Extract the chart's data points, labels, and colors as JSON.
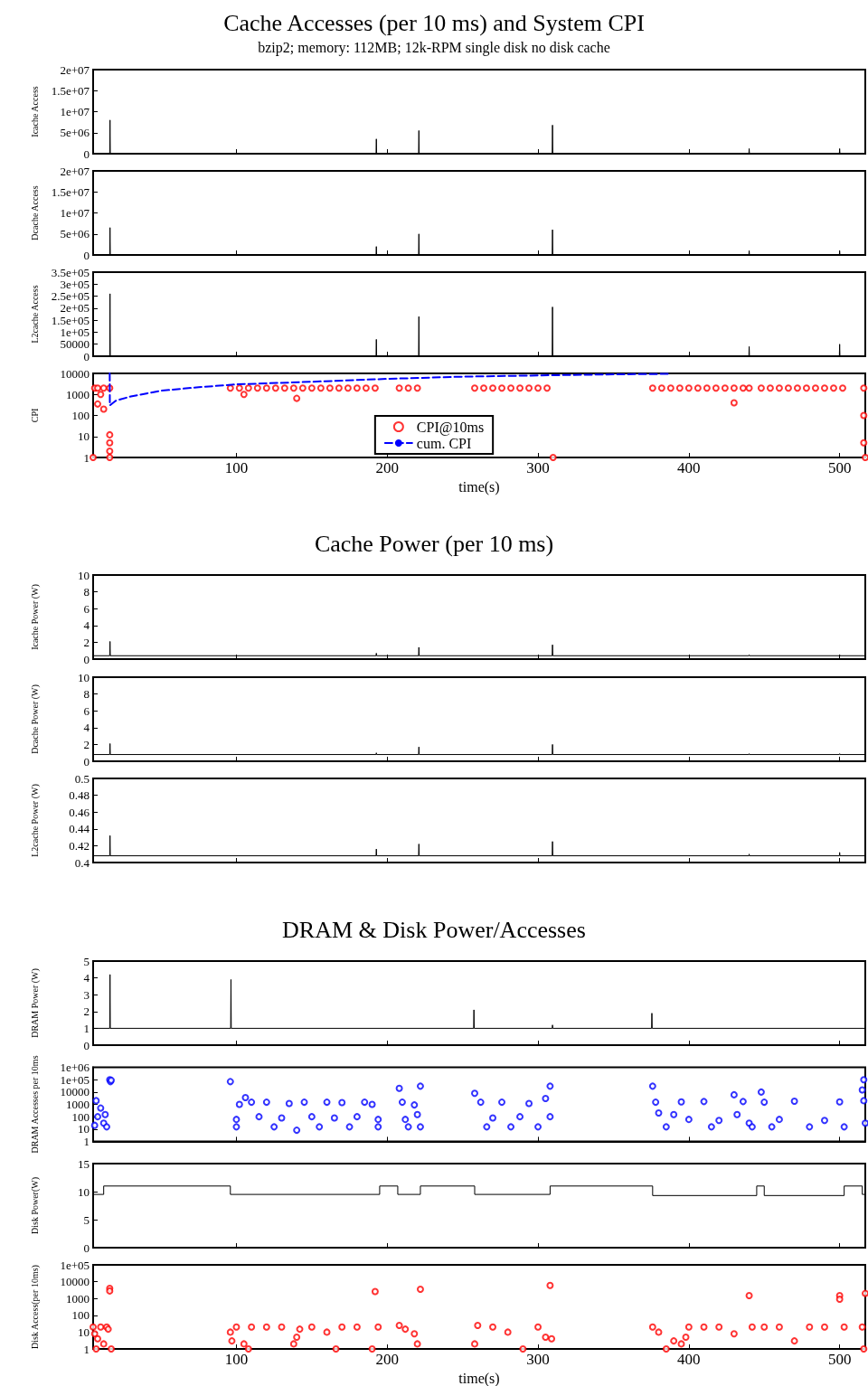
{
  "chart_data": [
    {
      "type": "line",
      "title": "Cache Accesses (per 10 ms) and System CPI",
      "subtitle": "bzip2; memory: 112MB; 12k-RPM single disk no disk cache",
      "ylabel": "Icache Access",
      "xlim": [
        5,
        517
      ],
      "xticks": [
        100,
        200,
        300,
        400,
        500
      ],
      "ylim": [
        0,
        20000000
      ],
      "yticks": [
        0,
        {
          "value": 5000000,
          "label": "5e+06"
        },
        {
          "value": 10000000,
          "label": "1e+07"
        },
        {
          "value": 15000000,
          "label": "1.5e+07"
        },
        {
          "value": 20000000,
          "label": "2e+07"
        }
      ],
      "tick_labels": "y",
      "grid": false,
      "series": [
        {
          "color": "#000000",
          "x": [
            5,
            16,
            16.2,
            16.4,
            192.6,
            192.8,
            193,
            220.8,
            221,
            221.2,
            309.4,
            309.6,
            309.8,
            439.8,
            440,
            440.2,
            499.8,
            500,
            500.2,
            517
          ],
          "values": [
            0,
            0,
            8000000,
            0,
            0,
            3500000,
            0,
            0,
            5500000,
            0,
            0,
            6800000,
            0,
            0,
            1200000,
            0,
            0,
            1200000,
            0,
            0
          ]
        }
      ]
    },
    {
      "type": "line",
      "ylabel": "Dcache Access",
      "xlim": [
        5,
        517
      ],
      "xticks": [
        100,
        200,
        300,
        400,
        500
      ],
      "ylim": [
        0,
        20000000
      ],
      "yticks": [
        0,
        {
          "value": 5000000,
          "label": "5e+06"
        },
        {
          "value": 10000000,
          "label": "1e+07"
        },
        {
          "value": 15000000,
          "label": "1.5e+07"
        },
        {
          "value": 20000000,
          "label": "2e+07"
        }
      ],
      "tick_labels": "y",
      "grid": false,
      "series": [
        {
          "color": "#000000",
          "x": [
            5,
            16,
            16.2,
            16.4,
            192.6,
            192.8,
            193,
            220.8,
            221,
            221.2,
            309.4,
            309.6,
            309.8,
            439.8,
            440,
            440.2,
            499.8,
            500,
            500.2,
            517
          ],
          "values": [
            0,
            0,
            6500000,
            0,
            0,
            2000000,
            0,
            0,
            5000000,
            0,
            0,
            6000000,
            0,
            0,
            1000000,
            0,
            0,
            1000000,
            0,
            0
          ]
        }
      ]
    },
    {
      "type": "line",
      "ylabel": "L2cache Access",
      "xlim": [
        5,
        517
      ],
      "xticks": [
        100,
        200,
        300,
        400,
        500
      ],
      "ylim": [
        0,
        350000
      ],
      "yticks": [
        0,
        50000,
        {
          "value": 100000,
          "label": "1e+05"
        },
        {
          "value": 150000,
          "label": "1.5e+05"
        },
        {
          "value": 200000,
          "label": "2e+05"
        },
        {
          "value": 250000,
          "label": "2.5e+05"
        },
        {
          "value": 300000,
          "label": "3e+05"
        },
        {
          "value": 350000,
          "label": "3.5e+05"
        }
      ],
      "tick_labels": "y",
      "grid": false,
      "series": [
        {
          "color": "#000000",
          "x": [
            5,
            16,
            16.2,
            16.4,
            192.6,
            192.8,
            193,
            220.8,
            221,
            221.2,
            309.4,
            309.6,
            309.8,
            439.8,
            440,
            440.2,
            499.8,
            500,
            500.2,
            517
          ],
          "values": [
            0,
            0,
            260000,
            0,
            0,
            70000,
            0,
            0,
            165000,
            0,
            0,
            205000,
            0,
            0,
            40000,
            0,
            0,
            50000,
            0,
            0
          ]
        }
      ]
    },
    {
      "type": "scatter",
      "xlabel": "time(s)",
      "ylabel": "CPI",
      "xlim": [
        5,
        517
      ],
      "xticks": [
        100,
        200,
        300,
        400,
        500
      ],
      "ylim": [
        1,
        10000
      ],
      "yticks": [
        1,
        10,
        100,
        1000,
        10000
      ],
      "log": "y",
      "grid": false,
      "legend": "bottom",
      "series": [
        {
          "name": "CPI@10ms",
          "marker": "circle",
          "color": "#ff0000",
          "x": [
            5,
            6,
            8,
            8,
            10,
            12,
            12,
            16,
            16,
            16,
            16,
            16,
            96,
            102,
            105,
            108,
            114,
            120,
            126,
            132,
            138,
            140,
            144,
            150,
            156,
            162,
            168,
            174,
            180,
            186,
            192,
            208,
            214,
            220,
            258,
            264,
            270,
            276,
            282,
            288,
            294,
            300,
            306,
            310,
            376,
            382,
            388,
            394,
            400,
            406,
            412,
            418,
            424,
            430,
            430,
            436,
            440,
            448,
            454,
            460,
            466,
            472,
            478,
            484,
            490,
            496,
            502,
            516,
            516,
            516,
            517
          ],
          "values": [
            1,
            2000,
            2000,
            350,
            1000,
            2000,
            200,
            2000,
            12,
            5,
            2,
            1,
            2000,
            2000,
            1000,
            2000,
            2000,
            2000,
            2000,
            2000,
            2000,
            650,
            2000,
            2000,
            2000,
            2000,
            2000,
            2000,
            2000,
            2000,
            2000,
            2000,
            2000,
            2000,
            2000,
            2000,
            2000,
            2000,
            2000,
            2000,
            2000,
            2000,
            2000,
            1,
            2000,
            2000,
            2000,
            2000,
            2000,
            2000,
            2000,
            2000,
            2000,
            2000,
            400,
            2000,
            2000,
            2000,
            2000,
            2000,
            2000,
            2000,
            2000,
            2000,
            2000,
            2000,
            2000,
            2000,
            100,
            5,
            1
          ]
        },
        {
          "name": "cum. CPI",
          "type": "line",
          "marker": "none",
          "line_style": "dashed",
          "color": "#0000ff",
          "x": [
            16,
            16.1,
            20,
            30,
            50,
            75,
            100,
            150,
            200,
            250,
            300,
            350,
            388
          ],
          "values": [
            10000,
            300,
            500,
            800,
            1500,
            2200,
            3000,
            4000,
            5500,
            7000,
            8000,
            9000,
            9500
          ]
        }
      ]
    },
    {
      "type": "line",
      "title": "Cache Power (per 10 ms)",
      "ylabel": "Icache Power (W)",
      "xlim": [
        5,
        517
      ],
      "xticks": [
        100,
        200,
        300,
        400,
        500
      ],
      "ylim": [
        0,
        10
      ],
      "yticks": [
        0,
        2,
        4,
        6,
        8,
        10
      ],
      "tick_labels": "y",
      "grid": false,
      "series": [
        {
          "color": "#000000",
          "x": [
            5,
            16,
            16.2,
            16.4,
            192.6,
            192.8,
            193,
            220.8,
            221,
            221.2,
            309.4,
            309.6,
            309.8,
            439.8,
            440,
            440.2,
            499.8,
            500,
            500.2,
            517
          ],
          "values": [
            0.4,
            0.4,
            2.1,
            0.4,
            0.4,
            0.7,
            0.4,
            0.4,
            1.4,
            0.4,
            0.4,
            1.7,
            0.4,
            0.4,
            0.5,
            0.4,
            0.4,
            0.5,
            0.4,
            0.4
          ]
        }
      ]
    },
    {
      "type": "line",
      "ylabel": "Dcache Power (W)",
      "xlim": [
        5,
        517
      ],
      "xticks": [
        100,
        200,
        300,
        400,
        500
      ],
      "ylim": [
        0,
        10
      ],
      "yticks": [
        0,
        2,
        4,
        6,
        8,
        10
      ],
      "tick_labels": "y",
      "grid": false,
      "series": [
        {
          "color": "#000000",
          "x": [
            5,
            16,
            16.2,
            16.4,
            192.6,
            192.8,
            193,
            220.8,
            221,
            221.2,
            309.4,
            309.6,
            309.8,
            439.8,
            440,
            440.2,
            499.8,
            500,
            500.2,
            517
          ],
          "values": [
            0.8,
            0.8,
            2.1,
            0.8,
            0.8,
            1,
            0.8,
            0.8,
            1.7,
            0.8,
            0.8,
            2,
            0.8,
            0.8,
            0.9,
            0.8,
            0.8,
            0.9,
            0.8,
            0.8
          ]
        }
      ]
    },
    {
      "type": "line",
      "ylabel": "L2cache Power (W)",
      "xlim": [
        5,
        517
      ],
      "xticks": [
        100,
        200,
        300,
        400,
        500
      ],
      "ylim": [
        0.4,
        0.5
      ],
      "yticks": [
        0.4,
        0.42,
        0.44,
        0.46,
        0.48,
        0.5
      ],
      "tick_labels": "y",
      "grid": false,
      "series": [
        {
          "color": "#000000",
          "x": [
            5,
            16,
            16.2,
            16.4,
            192.6,
            192.8,
            193,
            220.8,
            221,
            221.2,
            309.4,
            309.6,
            309.8,
            439.8,
            440,
            440.2,
            499.8,
            500,
            500.2,
            517
          ],
          "values": [
            0.408,
            0.408,
            0.432,
            0.408,
            0.408,
            0.416,
            0.408,
            0.408,
            0.422,
            0.408,
            0.408,
            0.425,
            0.408,
            0.408,
            0.41,
            0.408,
            0.408,
            0.412,
            0.408,
            0.408
          ]
        }
      ]
    },
    {
      "type": "line",
      "title": "DRAM & Disk Power/Accesses",
      "ylabel": "DRAM Power (W)",
      "xlim": [
        5,
        517
      ],
      "xticks": [
        100,
        200,
        300,
        400,
        500
      ],
      "ylim": [
        0,
        5
      ],
      "yticks": [
        0,
        1,
        2,
        3,
        4,
        5
      ],
      "tick_labels": "y",
      "grid": false,
      "series": [
        {
          "color": "#000000",
          "x": [
            5,
            16,
            16.2,
            16.4,
            96.2,
            96.4,
            96.6,
            257.3,
            257.5,
            257.7,
            309.4,
            309.6,
            309.8,
            375.3,
            375.5,
            375.7,
            517
          ],
          "values": [
            1,
            1,
            4.2,
            1,
            1,
            3.9,
            1,
            1,
            2.1,
            1,
            1,
            1.2,
            1,
            1,
            1.9,
            1,
            1
          ]
        }
      ]
    },
    {
      "type": "scatter",
      "ylabel": "DRAM Accesses per 10ms",
      "xlim": [
        5,
        517
      ],
      "xticks": [
        100,
        200,
        300,
        400,
        500
      ],
      "ylim": [
        1,
        1000000
      ],
      "yticks": [
        1,
        10,
        100,
        1000,
        10000,
        {
          "value": 100000,
          "label": "1e+05"
        },
        {
          "value": 1000000,
          "label": "1e+06"
        }
      ],
      "log": "y",
      "tick_labels": "y",
      "grid": false,
      "marker": "circle",
      "series": [
        {
          "color": "#0000ff",
          "x": [
            6,
            7,
            8,
            10,
            12,
            13,
            14,
            16,
            16.5,
            17,
            96,
            100,
            100,
            102,
            106,
            110,
            115,
            120,
            125,
            130,
            135,
            140,
            145,
            150,
            155,
            160,
            165,
            170,
            175,
            180,
            185,
            190,
            194,
            194,
            208,
            210,
            212,
            214,
            218,
            220,
            222,
            222,
            258,
            262,
            266,
            270,
            276,
            282,
            288,
            294,
            300,
            305,
            308,
            308,
            376,
            378,
            380,
            385,
            390,
            395,
            400,
            410,
            415,
            420,
            430,
            432,
            436,
            440,
            442,
            448,
            450,
            455,
            460,
            470,
            480,
            490,
            500,
            503,
            515,
            516,
            517,
            516
          ],
          "values": [
            20,
            2000,
            100,
            500,
            30,
            150,
            15,
            100000,
            70000,
            90000,
            70000,
            15,
            60,
            1000,
            3500,
            1500,
            100,
            1500,
            15,
            80,
            1200,
            8,
            1500,
            100,
            15,
            1500,
            80,
            1400,
            15,
            100,
            1500,
            1000,
            15,
            60,
            20000,
            1500,
            60,
            15,
            900,
            150,
            30000,
            15,
            8000,
            1500,
            15,
            80,
            1500,
            15,
            100,
            1200,
            15,
            3000,
            30000,
            100,
            30000,
            1500,
            200,
            15,
            150,
            1600,
            60,
            1700,
            15,
            50,
            6000,
            150,
            1700,
            30,
            15,
            10000,
            1500,
            15,
            60,
            1800,
            15,
            50,
            1600,
            15,
            15000,
            100000,
            30,
            2000
          ]
        }
      ]
    },
    {
      "type": "line",
      "ylabel": "Disk Power(W)",
      "xlim": [
        5,
        517
      ],
      "xticks": [
        100,
        200,
        300,
        400,
        500
      ],
      "ylim": [
        0,
        15
      ],
      "yticks": [
        0,
        5,
        10,
        15
      ],
      "tick_labels": "y",
      "grid": false,
      "series": [
        {
          "color": "#000000",
          "x": [
            5,
            12,
            12,
            96,
            96,
            195,
            195,
            207,
            207,
            222,
            222,
            258,
            258,
            308,
            308,
            376,
            376,
            445,
            445,
            450,
            450,
            503,
            503,
            515,
            515,
            517
          ],
          "values": [
            9.5,
            9.5,
            11,
            11,
            9.5,
            9.5,
            11,
            11,
            9.5,
            9.5,
            11,
            11,
            9.5,
            9.5,
            11,
            11,
            9.3,
            9.3,
            11,
            11,
            9.3,
            9.3,
            11,
            11,
            9.5,
            9.5
          ]
        }
      ]
    },
    {
      "type": "scatter",
      "xlabel": "time(s)",
      "ylabel": "Disk Access(per 10ms)",
      "xlim": [
        5,
        517
      ],
      "xticks": [
        100,
        200,
        300,
        400,
        500
      ],
      "ylim": [
        1,
        100000
      ],
      "yticks": [
        1,
        10,
        100,
        1000,
        10000,
        {
          "value": 100000,
          "label": "1e+05"
        }
      ],
      "log": "y",
      "grid": false,
      "marker": "circle",
      "series": [
        {
          "color": "#ff0000",
          "x": [
            5,
            6,
            7,
            8,
            10,
            12,
            14,
            16,
            16,
            17,
            15,
            96,
            97,
            100,
            105,
            108,
            110,
            120,
            130,
            138,
            140,
            142,
            150,
            160,
            166,
            170,
            180,
            190,
            192,
            194,
            208,
            212,
            218,
            220,
            222,
            258,
            260,
            270,
            280,
            290,
            300,
            305,
            308,
            309,
            376,
            380,
            385,
            390,
            395,
            398,
            400,
            410,
            420,
            430,
            440,
            442,
            450,
            460,
            470,
            480,
            490,
            500,
            500,
            503,
            515,
            516,
            517
          ],
          "values": [
            20,
            8,
            1,
            4,
            20,
            2,
            20,
            4000,
            2800,
            1,
            15,
            10,
            3,
            20,
            2,
            1,
            20,
            20,
            20,
            2,
            5,
            15,
            20,
            10,
            1,
            20,
            20,
            1,
            2600,
            20,
            25,
            15,
            8,
            2,
            3500,
            2,
            25,
            20,
            10,
            1,
            20,
            5,
            6000,
            4,
            20,
            10,
            1,
            3,
            2,
            5,
            20,
            20,
            20,
            8,
            1500,
            20,
            20,
            20,
            3,
            20,
            20,
            1500,
            900,
            20,
            20,
            1,
            2000
          ]
        }
      ]
    }
  ]
}
